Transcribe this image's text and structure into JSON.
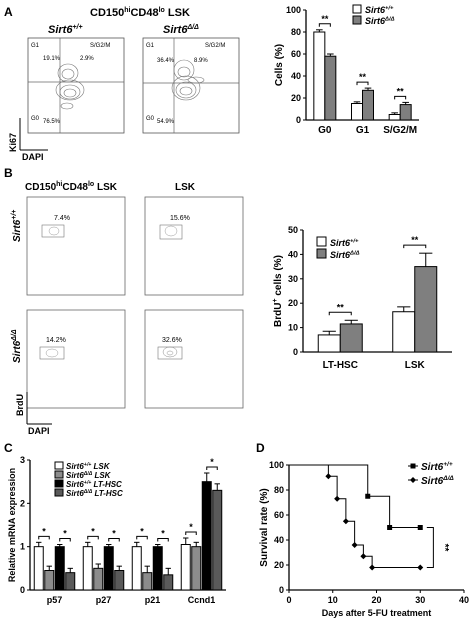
{
  "panel_letters": {
    "a": "A",
    "b": "B",
    "c": "C",
    "d": "D"
  },
  "flow_a": {
    "title": "CD150",
    "title_sup": "hi",
    "title_mid": "CD48",
    "title_sup2": "lo",
    "title_end": " LSK",
    "left_genotype": "Sirt6",
    "left_genotype_sup": "+/+",
    "right_genotype": "Sirt6",
    "right_genotype_sup": "Δ/Δ",
    "left": {
      "g1_label": "G1",
      "g0_label": "G0",
      "sg2m_label": "S/G2/M",
      "g1_pct": "19.1%",
      "sg2m_pct": "2.9%",
      "g0_pct": "76.5%"
    },
    "right": {
      "g1_label": "G1",
      "g0_label": "G0",
      "sg2m_label": "S/G2/M",
      "g1_pct": "36.4%",
      "sg2m_pct": "8.9%",
      "g0_pct": "54.9%"
    },
    "ylabel": "Ki67",
    "xlabel": "DAPI"
  },
  "flow_b": {
    "title_left": "CD150",
    "title_left_sup": "hi",
    "title_left_mid": "CD48",
    "title_left_sup2": "lo",
    "title_left_end": " LSK",
    "title_right": "LSK",
    "row1_label": "Sirt6",
    "row1_label_sup": "+/+",
    "row2_label": "Sirt6",
    "row2_label_sup": "Δ/Δ",
    "pct": [
      "7.4%",
      "15.6%",
      "14.2%",
      "32.6%"
    ],
    "ylabel": "BrdU",
    "xlabel": "DAPI"
  },
  "chart_data": [
    {
      "id": "A-right",
      "type": "bar",
      "categories": [
        "G0",
        "G1",
        "S/G2/M"
      ],
      "series": [
        {
          "name": "Sirt6+/+",
          "values": [
            80,
            15,
            5
          ],
          "errors": [
            2,
            1.5,
            1.5
          ],
          "color": "#ffffff"
        },
        {
          "name": "Sirt6Δ/Δ",
          "values": [
            58,
            27,
            14
          ],
          "errors": [
            2,
            2,
            2
          ],
          "color": "#7f7f7f"
        }
      ],
      "ylabel": "Cells (%)",
      "ylim": [
        0,
        100
      ],
      "yticks": [
        "0",
        "20",
        "40",
        "60",
        "80",
        "100"
      ],
      "significance": [
        "**",
        "**",
        "**"
      ],
      "legend": {
        "entries": [
          "Sirt6",
          "Sirt6"
        ],
        "sups": [
          "+/+",
          "Δ/Δ"
        ],
        "placement": "top-right"
      }
    },
    {
      "id": "B-right",
      "type": "bar",
      "categories": [
        "LT-HSC",
        "LSK"
      ],
      "series": [
        {
          "name": "Sirt6+/+",
          "values": [
            7,
            16.5
          ],
          "errors": [
            1.5,
            2
          ],
          "color": "#ffffff"
        },
        {
          "name": "Sirt6Δ/Δ",
          "values": [
            11.5,
            35
          ],
          "errors": [
            1.5,
            5.5
          ],
          "color": "#7f7f7f"
        }
      ],
      "ylabel": "BrdU",
      "ylabel_sup": "+",
      "ylabel_end": " cells (%)",
      "ylim": [
        0,
        50
      ],
      "yticks": [
        "0",
        "10",
        "20",
        "30",
        "40",
        "50"
      ],
      "significance": [
        "**",
        "**"
      ],
      "legend": {
        "entries": [
          "Sirt6",
          "Sirt6"
        ],
        "sups": [
          "+/+",
          "Δ/Δ"
        ],
        "placement": "top-left"
      }
    },
    {
      "id": "C",
      "type": "bar",
      "categories": [
        "p57",
        "p27",
        "p21",
        "Ccnd1"
      ],
      "series": [
        {
          "name": "Sirt6+/+ LSK",
          "values": [
            1.0,
            1.0,
            1.0,
            1.05
          ],
          "errors": [
            0.1,
            0.1,
            0.1,
            0.15
          ],
          "color": "#ffffff"
        },
        {
          "name": "Sirt6Δ/Δ LSK",
          "values": [
            0.45,
            0.5,
            0.4,
            1.0
          ],
          "errors": [
            0.1,
            0.1,
            0.15,
            0.1
          ],
          "color": "#8c8c8c"
        },
        {
          "name": "Sirt6+/+ LT-HSC",
          "values": [
            1.0,
            1.0,
            1.0,
            2.5
          ],
          "errors": [
            0.05,
            0.05,
            0.05,
            0.2
          ],
          "color": "#000000"
        },
        {
          "name": "Sirt6Δ/Δ LT-HSC",
          "values": [
            0.4,
            0.45,
            0.35,
            2.3
          ],
          "errors": [
            0.1,
            0.1,
            0.15,
            0.15
          ],
          "color": "#5a5a5a"
        }
      ],
      "ylabel": "Relative mRNA expression",
      "ylim": [
        0,
        3
      ],
      "yticks": [
        "0",
        "1",
        "2",
        "3"
      ],
      "significance": [
        "*",
        "*",
        "*",
        "*",
        "*",
        "*",
        "*",
        "*"
      ],
      "legend": {
        "entries": [
          "Sirt6",
          "Sirt6",
          "Sirt6",
          "Sirt6"
        ],
        "sups": [
          "+/+",
          "Δ/Δ",
          "+/+",
          "Δ/Δ"
        ],
        "suffix": [
          " LSK",
          " LSK",
          " LT-HSC",
          " LT-HSC"
        ],
        "placement": "top-left"
      }
    },
    {
      "id": "D",
      "type": "line",
      "ylabel": "Survival rate (%)",
      "xlabel": "Days after 5-FU treatment",
      "xlim": [
        0,
        40
      ],
      "ylim": [
        0,
        100
      ],
      "xticks": [
        "0",
        "10",
        "20",
        "30",
        "40"
      ],
      "yticks": [
        "0",
        "20",
        "40",
        "60",
        "80",
        "100"
      ],
      "series": [
        {
          "name": "Sirt6+/+",
          "marker": "square",
          "x": [
            0,
            18,
            18,
            23,
            23,
            30
          ],
          "y": [
            100,
            100,
            75,
            75,
            50,
            50
          ]
        },
        {
          "name": "Sirt6Δ/Δ",
          "marker": "diamond",
          "x": [
            0,
            9,
            9,
            11,
            11,
            13,
            13,
            15,
            15,
            17,
            17,
            19,
            19,
            30
          ],
          "y": [
            100,
            100,
            91,
            91,
            73,
            73,
            55,
            55,
            36,
            36,
            27,
            27,
            18,
            18
          ]
        }
      ],
      "significance": "**",
      "legend": {
        "entries": [
          "Sirt6",
          "Sirt6"
        ],
        "sups": [
          "+/+",
          "Δ/Δ"
        ],
        "placement": "top-right"
      }
    }
  ]
}
